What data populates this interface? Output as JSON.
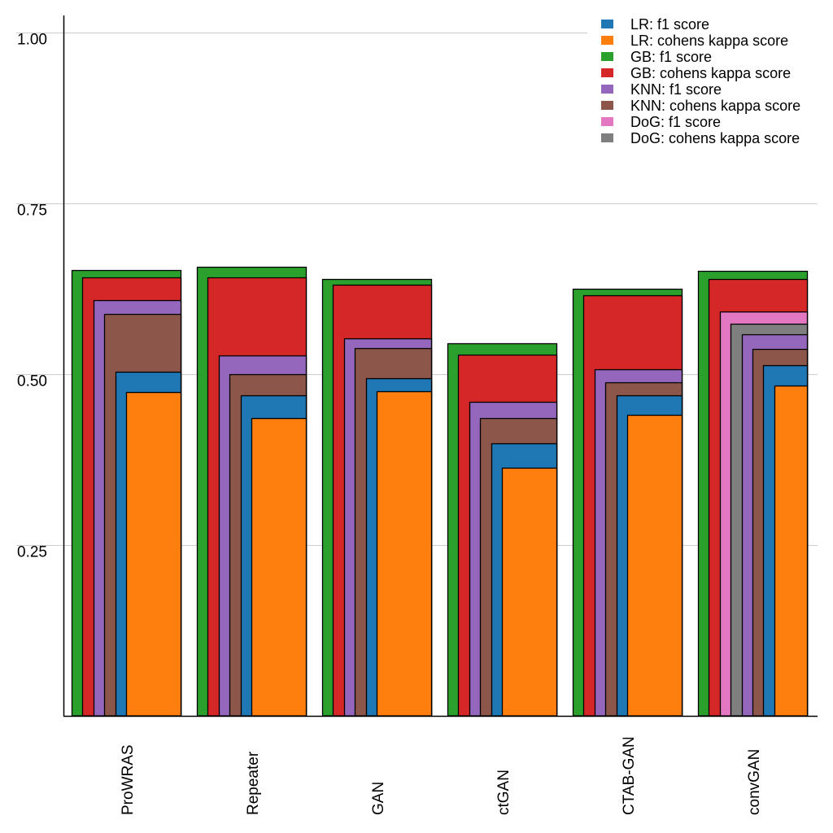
{
  "chart_data": {
    "type": "bar",
    "layout": "overlapping-nested",
    "title": "",
    "xlabel": "",
    "ylabel": "",
    "ylim": [
      0,
      1.0
    ],
    "yticks": [
      0.25,
      0.5,
      0.75,
      1.0
    ],
    "ytick_labels": [
      "0.25",
      "0.50",
      "0.75",
      "1.00"
    ],
    "grid": "horizontal",
    "legend_position": "top-right",
    "categories": [
      "ProWRAS",
      "Repeater",
      "GAN",
      "ctGAN",
      "CTAB-GAN",
      "convGAN"
    ],
    "series": [
      {
        "name": "LR: f1 score",
        "color": "#1f77b4",
        "values": [
          0.504,
          0.469,
          0.494,
          0.399,
          0.469,
          0.513
        ]
      },
      {
        "name": "LR: cohens kappa score",
        "color": "#ff7f0e",
        "values": [
          0.474,
          0.436,
          0.475,
          0.363,
          0.44,
          0.483
        ]
      },
      {
        "name": "GB: f1 score",
        "color": "#2ca02c",
        "values": [
          0.652,
          0.657,
          0.639,
          0.545,
          0.625,
          0.651
        ]
      },
      {
        "name": "GB: cohens kappa score",
        "color": "#d62728",
        "values": [
          0.642,
          0.642,
          0.631,
          0.529,
          0.615,
          0.639
        ]
      },
      {
        "name": "KNN: f1 score",
        "color": "#9467bd",
        "values": [
          0.608,
          0.527,
          0.552,
          0.46,
          0.507,
          0.558
        ]
      },
      {
        "name": "KNN: cohens kappa score",
        "color": "#8c564b",
        "values": [
          0.588,
          0.5,
          0.538,
          0.436,
          0.488,
          0.537
        ]
      },
      {
        "name": "DoG: f1 score",
        "color": "#e377c2",
        "values": [
          null,
          null,
          null,
          null,
          null,
          0.592
        ]
      },
      {
        "name": "DoG: cohens kappa score",
        "color": "#7f7f7f",
        "values": [
          null,
          null,
          null,
          null,
          null,
          0.574
        ]
      }
    ],
    "draw_order": [
      "GB: f1 score",
      "GB: cohens kappa score",
      "DoG: f1 score",
      "DoG: cohens kappa score",
      "KNN: f1 score",
      "KNN: cohens kappa score",
      "LR: f1 score",
      "LR: cohens kappa score"
    ]
  }
}
